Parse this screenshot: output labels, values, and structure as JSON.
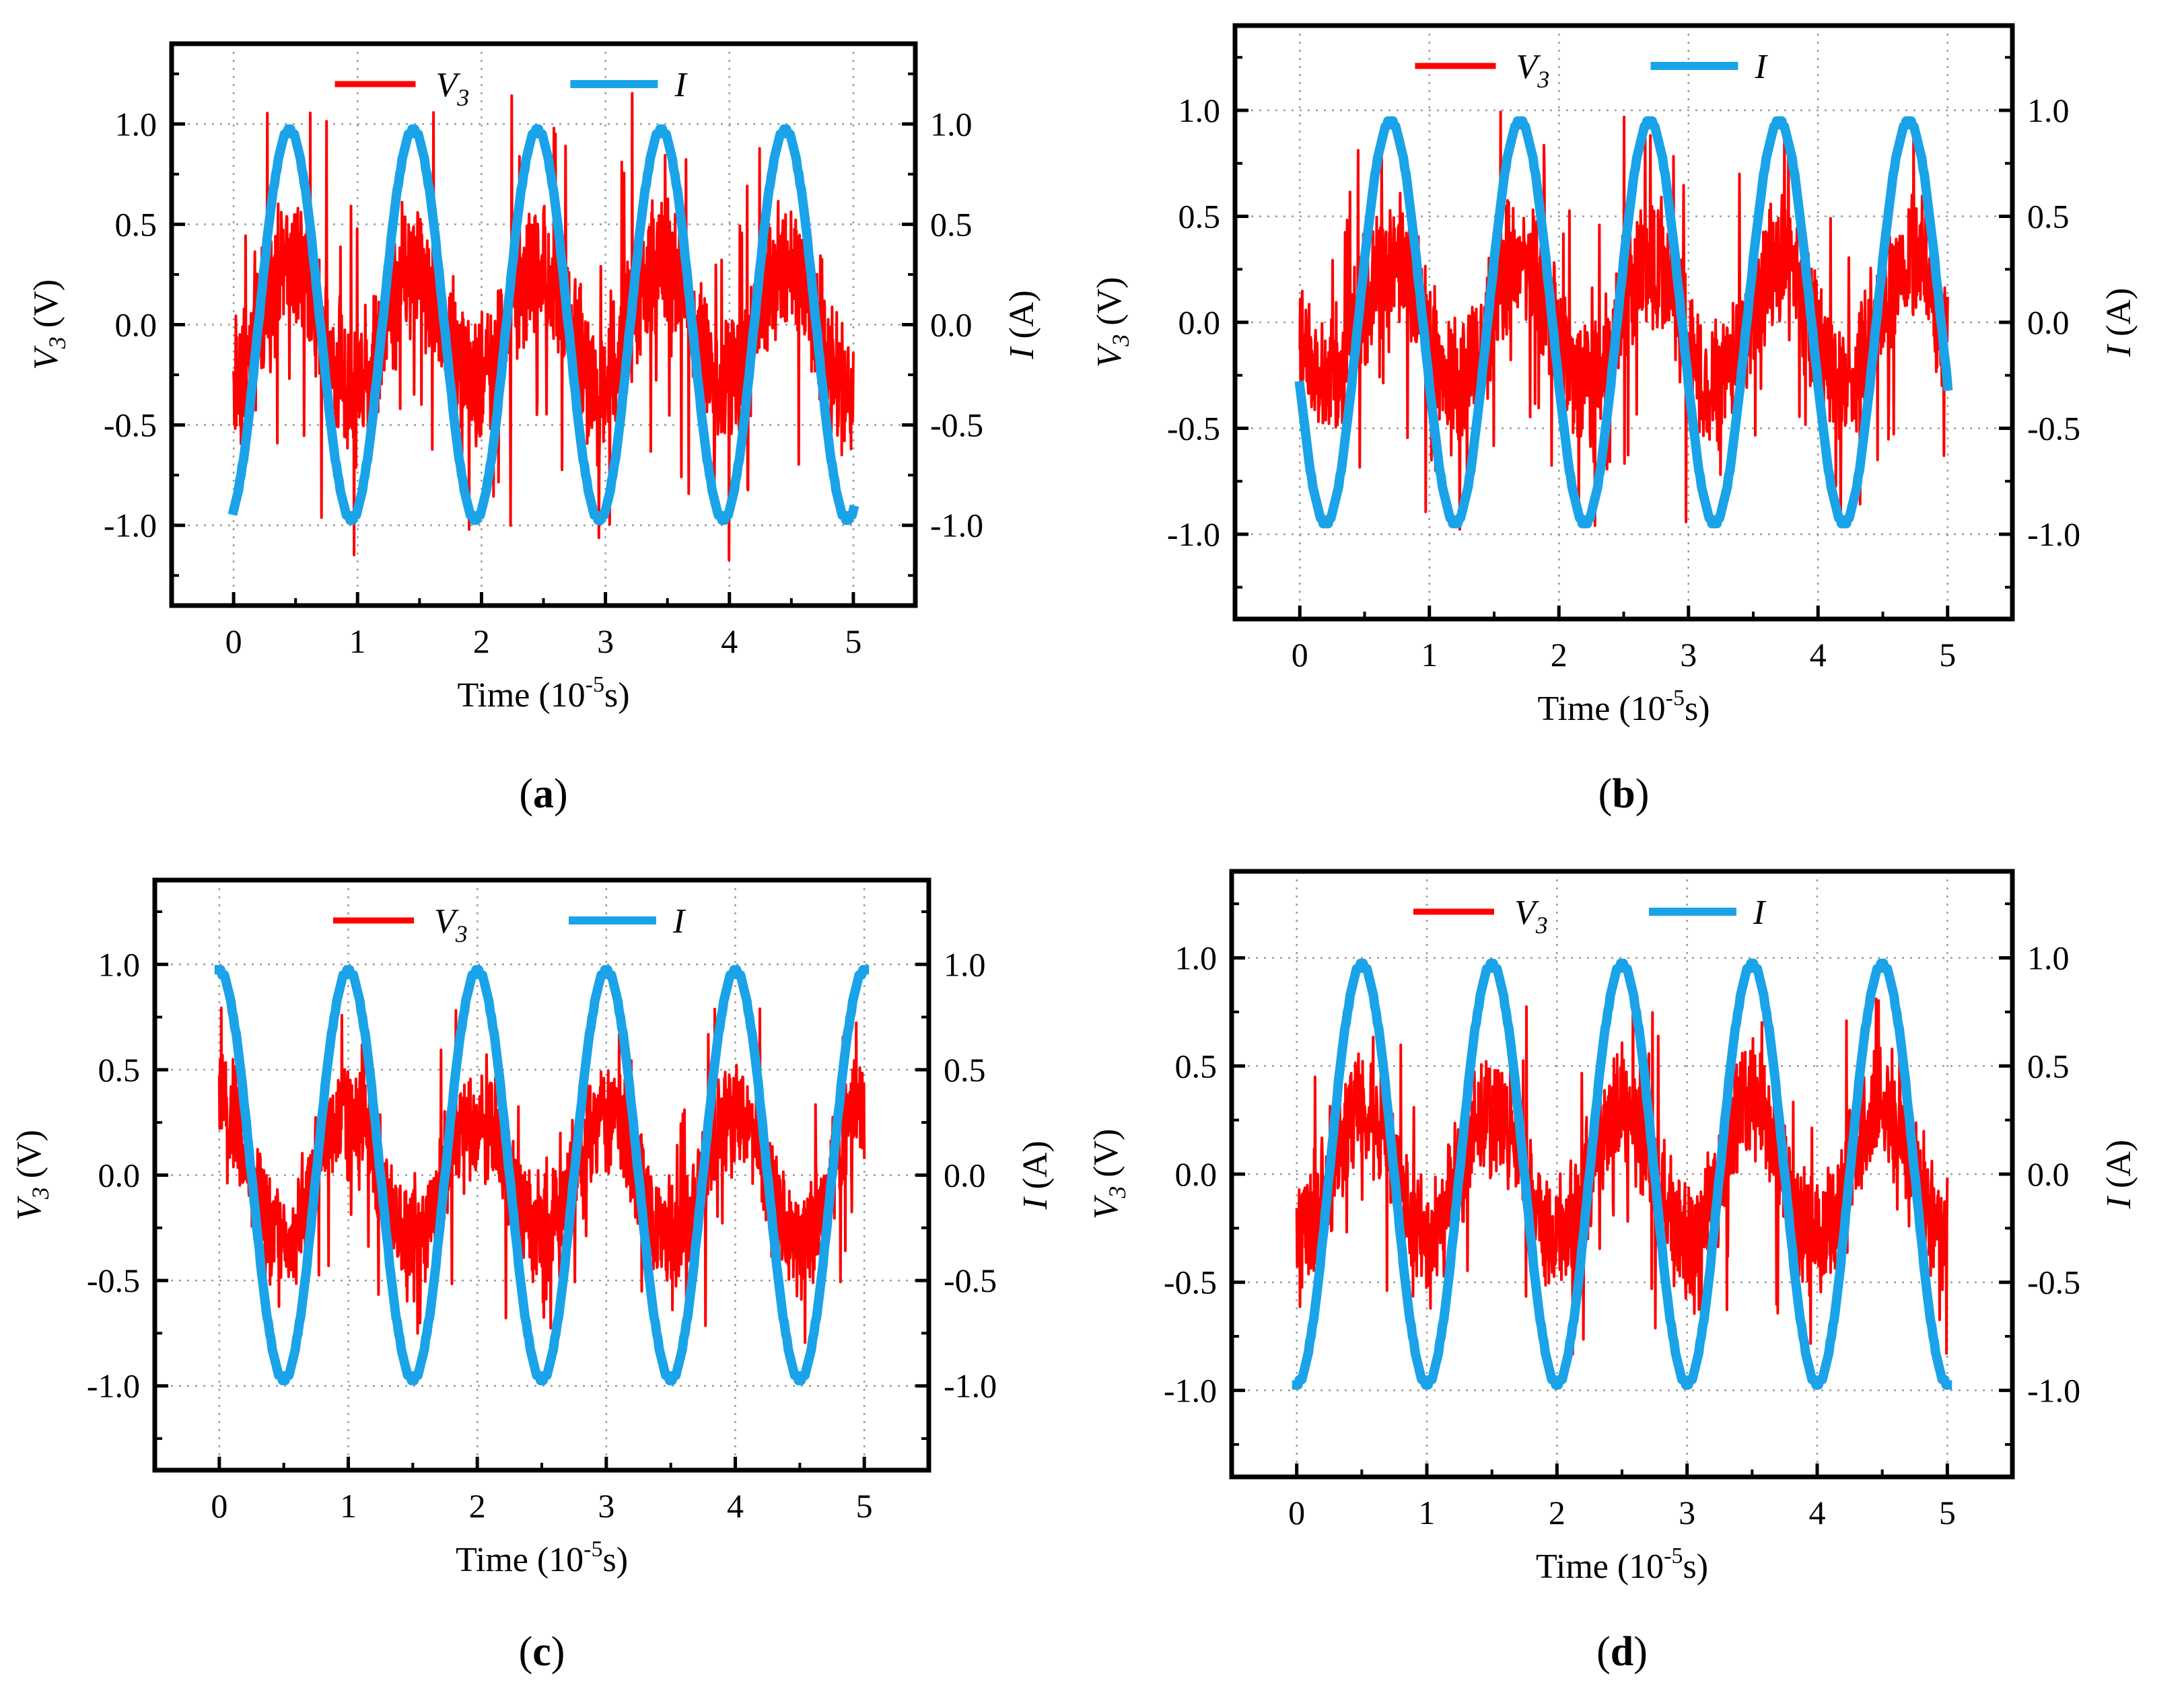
{
  "chart_data": [
    {
      "panel": "a",
      "caption_letter": "a",
      "type": "line",
      "xlabel": "Time (10",
      "xlabel_sup": "-5",
      "xlabel_end": "s)",
      "ylabel_left_var": "V",
      "ylabel_left_sub": "3",
      "ylabel_left_unit": " (V)",
      "ylabel_right_var": "I",
      "ylabel_right_unit": " (A)",
      "xlim": [
        -0.5,
        5.5
      ],
      "ylim": [
        -1.4,
        1.4
      ],
      "x_ticks": [
        "0",
        "1",
        "2",
        "3",
        "4",
        "5"
      ],
      "y_ticks_left": [
        "1.0",
        "0.5",
        "0.0",
        "-0.5",
        "-1.0"
      ],
      "y_ticks_right": [
        "1.0",
        "0.5",
        "0.0",
        "-0.5",
        "-1.0"
      ],
      "legend": [
        {
          "name": "V",
          "sub": "3",
          "color": "#ff0000"
        },
        {
          "name": "I",
          "sub": "",
          "color": "#1aa3e8"
        }
      ],
      "series": [
        {
          "name": "V3",
          "color": "#ff0000",
          "kind": "noisy_sine",
          "x_range": [
            0,
            5
          ],
          "frequency_per_unit": 1,
          "phase_peak_at": 0.45,
          "envelope_amplitude": 0.3,
          "noise_amplitude": 0.45,
          "spike_max": 1.2
        },
        {
          "name": "I",
          "color": "#1aa3e8",
          "kind": "sine",
          "x_range": [
            0,
            5
          ],
          "frequency_per_unit": 1,
          "amplitude": 0.97,
          "phase_peak_at": 0.45
        }
      ]
    },
    {
      "panel": "b",
      "caption_letter": "b",
      "type": "line",
      "xlabel": "Time (10",
      "xlabel_sup": "-5",
      "xlabel_end": "s)",
      "ylabel_left_var": "V",
      "ylabel_left_sub": "3",
      "ylabel_left_unit": " (V)",
      "ylabel_right_var": "I",
      "ylabel_right_unit": " (A)",
      "xlim": [
        -0.5,
        5.5
      ],
      "ylim": [
        -1.4,
        1.4
      ],
      "x_ticks": [
        "0",
        "1",
        "2",
        "3",
        "4",
        "5"
      ],
      "y_ticks_left": [
        "1.0",
        "0.5",
        "0.0",
        "-0.5",
        "-1.0"
      ],
      "y_ticks_right": [
        "1.0",
        "0.5",
        "0.0",
        "-0.5",
        "-1.0"
      ],
      "legend": [
        {
          "name": "V",
          "sub": "3",
          "color": "#ff0000"
        },
        {
          "name": "I",
          "sub": "",
          "color": "#1aa3e8"
        }
      ],
      "series": [
        {
          "name": "V3",
          "color": "#ff0000",
          "kind": "noisy_sine",
          "x_range": [
            0,
            5
          ],
          "frequency_per_unit": 1,
          "phase_peak_at": 0.7,
          "envelope_amplitude": 0.3,
          "noise_amplitude": 0.4,
          "spike_max": 1.0
        },
        {
          "name": "I",
          "color": "#1aa3e8",
          "kind": "sine",
          "x_range": [
            0,
            5
          ],
          "frequency_per_unit": 1,
          "amplitude": 0.95,
          "phase_peak_at": 0.7
        }
      ]
    },
    {
      "panel": "c",
      "caption_letter": "c",
      "type": "line",
      "xlabel": "Time (10",
      "xlabel_sup": "-5",
      "xlabel_end": "s)",
      "ylabel_left_var": "V",
      "ylabel_left_sub": "3",
      "ylabel_left_unit": " (V)",
      "ylabel_right_var": "I",
      "ylabel_right_unit": " (A)",
      "xlim": [
        -0.5,
        5.5
      ],
      "ylim": [
        -1.4,
        1.4
      ],
      "x_ticks": [
        "0",
        "1",
        "2",
        "3",
        "4",
        "5"
      ],
      "y_ticks_left": [
        "1.0",
        "0.5",
        "0.0",
        "-0.5",
        "-1.0"
      ],
      "y_ticks_right": [
        "1.0",
        "0.5",
        "0.0",
        "-0.5",
        "-1.0"
      ],
      "legend": [
        {
          "name": "V",
          "sub": "3",
          "color": "#ff0000"
        },
        {
          "name": "I",
          "sub": "",
          "color": "#1aa3e8"
        }
      ],
      "series": [
        {
          "name": "V3",
          "color": "#ff0000",
          "kind": "noisy_sine",
          "x_range": [
            0,
            5
          ],
          "frequency_per_unit": 1,
          "phase_peak_at": 0.0,
          "envelope_amplitude": 0.3,
          "noise_amplitude": 0.35,
          "spike_max": 0.8
        },
        {
          "name": "I",
          "color": "#1aa3e8",
          "kind": "sine",
          "x_range": [
            0,
            5
          ],
          "frequency_per_unit": 1,
          "amplitude": 0.97,
          "phase_peak_at": 0.0
        }
      ]
    },
    {
      "panel": "d",
      "caption_letter": "d",
      "type": "line",
      "xlabel": "Time (10",
      "xlabel_sup": "-5",
      "xlabel_end": "s)",
      "ylabel_left_var": "V",
      "ylabel_left_sub": "3",
      "ylabel_left_unit": " (V)",
      "ylabel_right_var": "I",
      "ylabel_right_unit": " (A)",
      "xlim": [
        -0.5,
        5.5
      ],
      "ylim": [
        -1.4,
        1.4
      ],
      "x_ticks": [
        "0",
        "1",
        "2",
        "3",
        "4",
        "5"
      ],
      "y_ticks_left": [
        "1.0",
        "0.5",
        "0.0",
        "-0.5",
        "-1.0"
      ],
      "y_ticks_right": [
        "1.0",
        "0.5",
        "0.0",
        "-0.5",
        "-1.0"
      ],
      "legend": [
        {
          "name": "V",
          "sub": "3",
          "color": "#ff0000"
        },
        {
          "name": "I",
          "sub": "",
          "color": "#1aa3e8"
        }
      ],
      "series": [
        {
          "name": "V3",
          "color": "#ff0000",
          "kind": "noisy_sine",
          "x_range": [
            0,
            5
          ],
          "frequency_per_unit": 1,
          "phase_peak_at": 0.5,
          "envelope_amplitude": 0.3,
          "noise_amplitude": 0.35,
          "spike_max": 0.85
        },
        {
          "name": "I",
          "color": "#1aa3e8",
          "kind": "sine",
          "x_range": [
            0,
            5
          ],
          "frequency_per_unit": 1,
          "amplitude": 0.97,
          "phase_peak_at": 0.5
        }
      ]
    }
  ]
}
